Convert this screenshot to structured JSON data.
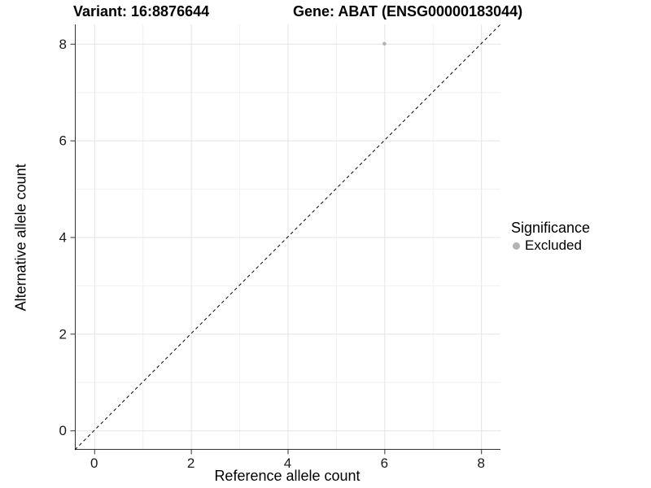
{
  "chart_data": {
    "type": "scatter",
    "titles": [
      "Variant: 16:8876644",
      "Gene: ABAT (ENSG00000183044)"
    ],
    "xlabel": "Reference allele count",
    "ylabel": "Alternative allele count",
    "xlim": [
      -0.4,
      8.4
    ],
    "ylim": [
      -0.4,
      8.4
    ],
    "x_ticks": [
      0,
      2,
      4,
      6,
      8
    ],
    "y_ticks": [
      0,
      2,
      4,
      6,
      8
    ],
    "x_minor_ticks": [
      1,
      3,
      5,
      7
    ],
    "y_minor_ticks": [
      1,
      3,
      5,
      7
    ],
    "grid": "major+minor",
    "points": [
      {
        "x": 6,
        "y": 8,
        "series": "Excluded"
      }
    ],
    "reference_line": {
      "kind": "identity y=x",
      "style": "dashed",
      "color": "#000000"
    },
    "legend": {
      "title": "Significance",
      "position": "right",
      "items": [
        {
          "label": "Excluded",
          "color": "#b4b4b4"
        }
      ]
    }
  },
  "colors": {
    "background": "#ffffff",
    "axis_line": "#333333",
    "tick_mark": "#333333",
    "tick_label": "#1a1a1a",
    "grid_major": "#e4e4e4",
    "grid_minor": "#f1f1f1",
    "point": "#b4b4b4"
  }
}
